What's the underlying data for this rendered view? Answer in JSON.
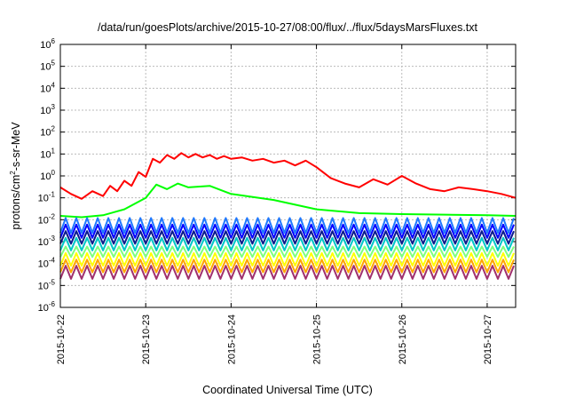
{
  "chart_data": {
    "type": "line",
    "title": "/data/run/goesPlots/archive/2015-10-27/08:00/flux/../flux/5daysMarsFluxes.txt",
    "xlabel": "Coordinated Universal Time (UTC)",
    "ylabel": "protons/cm2-s-sr-MeV",
    "ylabel_parts": {
      "pre": "protons/cm",
      "sup": "2",
      "post": "-s-sr-MeV"
    },
    "y_scale": "log",
    "ylim": [
      1e-06,
      1000000.0
    ],
    "y_ticks": [
      {
        "base": "10",
        "exp": "6",
        "value": 1000000.0
      },
      {
        "base": "10",
        "exp": "5",
        "value": 100000.0
      },
      {
        "base": "10",
        "exp": "4",
        "value": 10000.0
      },
      {
        "base": "10",
        "exp": "3",
        "value": 1000.0
      },
      {
        "base": "10",
        "exp": "2",
        "value": 100.0
      },
      {
        "base": "10",
        "exp": "1",
        "value": 10.0
      },
      {
        "base": "10",
        "exp": "0",
        "value": 1.0
      },
      {
        "base": "10",
        "exp": "-1",
        "value": 0.1
      },
      {
        "base": "10",
        "exp": "-2",
        "value": 0.01
      },
      {
        "base": "10",
        "exp": "-3",
        "value": 0.001
      },
      {
        "base": "10",
        "exp": "-4",
        "value": 0.0001
      },
      {
        "base": "10",
        "exp": "-5",
        "value": 1e-05
      },
      {
        "base": "10",
        "exp": "-6",
        "value": 1e-06
      }
    ],
    "xlim": [
      "2015-10-22",
      "2015-10-27 08:00"
    ],
    "x_ticks": [
      "2015-10-22",
      "2015-10-23",
      "2015-10-24",
      "2015-10-25",
      "2015-10-26",
      "2015-10-27"
    ],
    "grid": true,
    "series": [
      {
        "color": "#ff0000",
        "x": [
          "2015-10-22 00:00",
          "2015-10-22 03:00",
          "2015-10-22 06:00",
          "2015-10-22 09:00",
          "2015-10-22 12:00",
          "2015-10-22 14:00",
          "2015-10-22 16:00",
          "2015-10-22 18:00",
          "2015-10-22 20:00",
          "2015-10-22 22:00",
          "2015-10-23 00:00",
          "2015-10-23 02:00",
          "2015-10-23 04:00",
          "2015-10-23 06:00",
          "2015-10-23 08:00",
          "2015-10-23 10:00",
          "2015-10-23 12:00",
          "2015-10-23 14:00",
          "2015-10-23 16:00",
          "2015-10-23 18:00",
          "2015-10-23 20:00",
          "2015-10-23 22:00",
          "2015-10-24 00:00",
          "2015-10-24 03:00",
          "2015-10-24 06:00",
          "2015-10-24 09:00",
          "2015-10-24 12:00",
          "2015-10-24 15:00",
          "2015-10-24 18:00",
          "2015-10-24 21:00",
          "2015-10-25 00:00",
          "2015-10-25 04:00",
          "2015-10-25 08:00",
          "2015-10-25 12:00",
          "2015-10-25 16:00",
          "2015-10-25 20:00",
          "2015-10-26 00:00",
          "2015-10-26 04:00",
          "2015-10-26 08:00",
          "2015-10-26 12:00",
          "2015-10-26 16:00",
          "2015-10-26 20:00",
          "2015-10-27 00:00",
          "2015-10-27 04:00",
          "2015-10-27 08:00"
        ],
        "values": [
          0.3,
          0.15,
          0.09,
          0.2,
          0.12,
          0.35,
          0.2,
          0.6,
          0.35,
          1.5,
          0.9,
          6,
          4,
          9,
          6,
          11,
          7,
          10,
          7,
          9,
          6,
          8,
          6,
          7,
          5,
          6,
          4,
          5,
          3,
          5,
          2.5,
          0.8,
          0.45,
          0.3,
          0.7,
          0.4,
          1.0,
          0.45,
          0.25,
          0.2,
          0.3,
          0.25,
          0.2,
          0.15,
          0.1
        ]
      },
      {
        "color": "#00ff00",
        "x": [
          "2015-10-22 00:00",
          "2015-10-22 06:00",
          "2015-10-22 12:00",
          "2015-10-22 18:00",
          "2015-10-23 00:00",
          "2015-10-23 03:00",
          "2015-10-23 06:00",
          "2015-10-23 09:00",
          "2015-10-23 12:00",
          "2015-10-23 18:00",
          "2015-10-24 00:00",
          "2015-10-24 12:00",
          "2015-10-25 00:00",
          "2015-10-25 12:00",
          "2015-10-26 00:00",
          "2015-10-26 12:00",
          "2015-10-27 00:00",
          "2015-10-27 08:00"
        ],
        "values": [
          0.015,
          0.013,
          0.016,
          0.03,
          0.1,
          0.4,
          0.25,
          0.45,
          0.3,
          0.35,
          0.15,
          0.08,
          0.03,
          0.02,
          0.018,
          0.017,
          0.016,
          0.015
        ]
      },
      {
        "color": "#1e78ff",
        "values_range": [
          0.0025,
          0.012
        ]
      },
      {
        "color": "#0000ff",
        "values_range": [
          0.0015,
          0.006
        ]
      },
      {
        "color": "#0a1a8c",
        "values_range": [
          0.0008,
          0.003
        ]
      },
      {
        "color": "#00c8c8",
        "values_range": [
          0.0004,
          0.0015
        ]
      },
      {
        "color": "#7fff7f",
        "values_range": [
          0.0002,
          0.0006
        ]
      },
      {
        "color": "#ffff00",
        "values_range": [
          8e-05,
          0.0003
        ]
      },
      {
        "color": "#ffa500",
        "values_range": [
          4e-05,
          0.00015
        ]
      },
      {
        "color": "#a0306e",
        "values_range": [
          2e-05,
          8e-05
        ]
      }
    ]
  }
}
